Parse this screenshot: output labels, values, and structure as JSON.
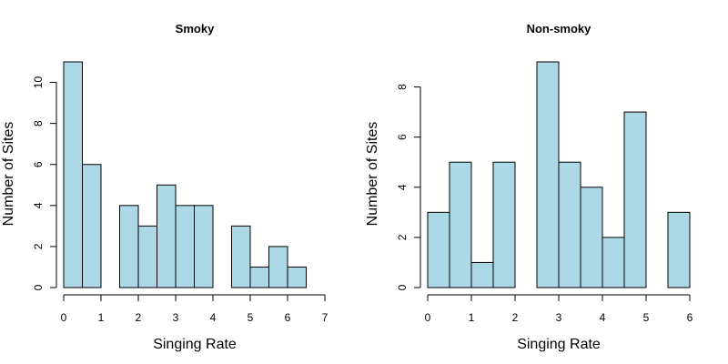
{
  "chart_data": [
    {
      "type": "bar",
      "title": "Smoky",
      "xlabel": "Singing Rate",
      "ylabel": "Number of Sites",
      "bin_width": 0.5,
      "bin_starts": [
        0,
        0.5,
        1,
        1.5,
        2,
        2.5,
        3,
        3.5,
        4,
        4.5,
        5,
        5.5,
        6
      ],
      "values": [
        11,
        6,
        0,
        4,
        3,
        5,
        4,
        4,
        0,
        3,
        1,
        2,
        1
      ],
      "xlim": [
        0,
        7
      ],
      "ylim": [
        0,
        11
      ],
      "x_ticks": [
        "0",
        "1",
        "2",
        "3",
        "4",
        "5",
        "6",
        "7"
      ],
      "y_ticks": [
        "0",
        "2",
        "4",
        "6",
        "8",
        "10"
      ],
      "bar_color": "#add8e6",
      "grid": false
    },
    {
      "type": "bar",
      "title": "Non-smoky",
      "xlabel": "Singing Rate",
      "ylabel": "Number of Sites",
      "bin_width": 0.5,
      "bin_starts": [
        0,
        0.5,
        1,
        1.5,
        2,
        2.5,
        3,
        3.5,
        4,
        4.5,
        5,
        5.5
      ],
      "values": [
        3,
        5,
        1,
        5,
        0,
        9,
        5,
        4,
        2,
        7,
        0,
        3
      ],
      "xlim": [
        0,
        6
      ],
      "ylim": [
        0,
        9
      ],
      "x_ticks": [
        "0",
        "1",
        "2",
        "3",
        "4",
        "5",
        "6"
      ],
      "y_ticks": [
        "0",
        "2",
        "4",
        "6",
        "8"
      ],
      "bar_color": "#add8e6",
      "grid": false
    }
  ]
}
